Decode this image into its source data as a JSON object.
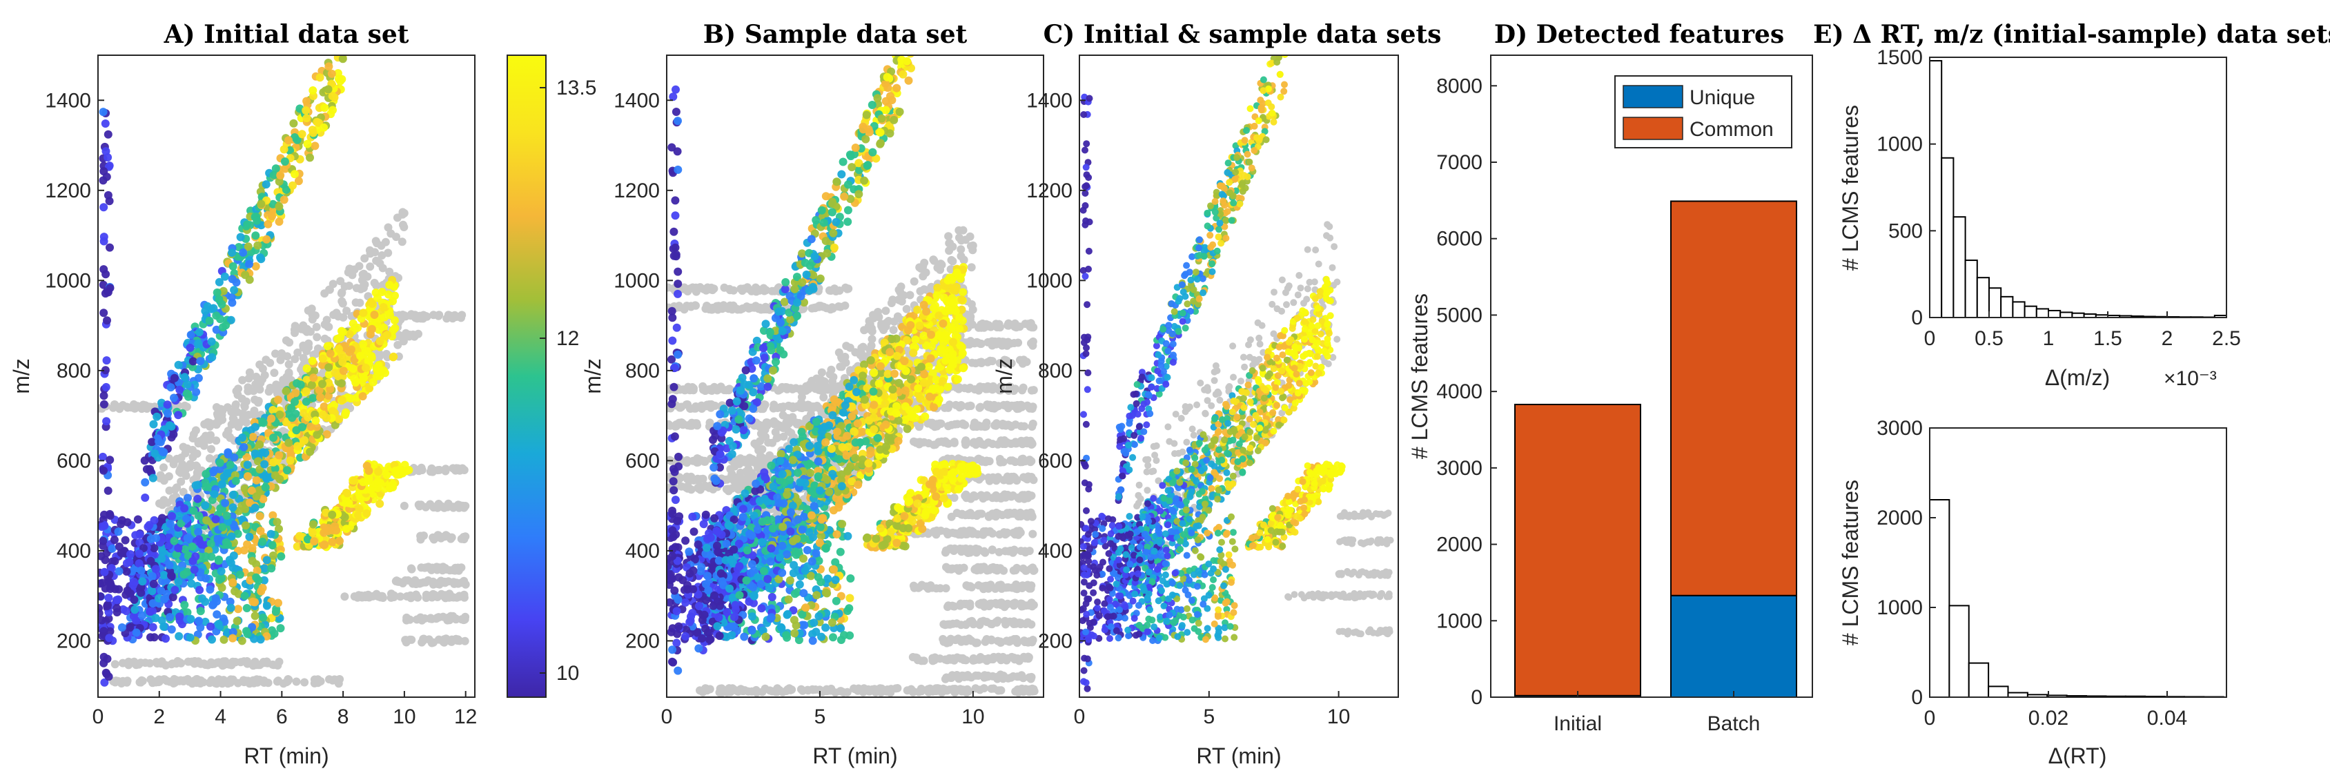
{
  "colors": {
    "gray_points": "#c8c8c8",
    "unique": "#0072BD",
    "common": "#D95319",
    "axis": "#262626",
    "colormap": [
      "#3e26a8",
      "#4743f2",
      "#2f7dfa",
      "#1aa9d8",
      "#2dc38f",
      "#a3bf38",
      "#f5b738",
      "#f9e31f",
      "#f9fb0e"
    ]
  },
  "panels": {
    "a": {
      "title": "A) Initial data set",
      "xlabel": "RT (min)",
      "ylabel": "m/z"
    },
    "b": {
      "title": "B) Sample data set",
      "xlabel": "RT (min)"
    },
    "c": {
      "title": "C) Initial & sample data sets",
      "xlabel": "RT (min)",
      "ylabel": "m/z"
    },
    "d": {
      "title": "D) Detected features"
    },
    "e": {
      "title": "E) Δ RT, m/z (initial-sample) data sets"
    }
  },
  "colorbar": {
    "label": "m/z",
    "ticks": [
      "13.5",
      "12",
      "10"
    ]
  },
  "chart_data": [
    {
      "id": "A",
      "type": "scatter",
      "title": "A) Initial data set",
      "xlabel": "RT (min)",
      "ylabel": "m/z",
      "xlim": [
        0,
        12.3
      ],
      "ylim": [
        75,
        1500
      ],
      "xticks": [
        "0",
        "2",
        "4",
        "6",
        "8",
        "10",
        "12"
      ],
      "yticks": [
        "200",
        "400",
        "600",
        "800",
        "1000",
        "1200",
        "1400"
      ],
      "color_scale": "log m/z (colorbar 10-13.5)"
    },
    {
      "id": "B",
      "type": "scatter",
      "title": "B) Sample data set",
      "xlabel": "RT (min)",
      "xlim": [
        0,
        12.3
      ],
      "ylim": [
        75,
        1500
      ],
      "xticks": [
        "0",
        "5",
        "10"
      ],
      "yticks": [
        "200",
        "400",
        "600",
        "800",
        "1000",
        "1200",
        "1400"
      ]
    },
    {
      "id": "C",
      "type": "scatter",
      "title": "C) Initial & sample data sets",
      "xlabel": "RT (min)",
      "ylabel": "m/z",
      "xlim": [
        0,
        12.3
      ],
      "ylim": [
        75,
        1500
      ],
      "xticks": [
        "0",
        "5",
        "10"
      ],
      "yticks": [
        "200",
        "400",
        "600",
        "800",
        "1000",
        "1200",
        "1400"
      ]
    },
    {
      "id": "D",
      "type": "bar",
      "title": "D) Detected features",
      "ylabel": "# LCMS features",
      "categories": [
        "Initial",
        "Batch"
      ],
      "series": [
        {
          "name": "Unique",
          "values": [
            20,
            1330
          ]
        },
        {
          "name": "Common",
          "values": [
            3810,
            5160
          ]
        }
      ],
      "ylim": [
        0,
        8400
      ],
      "yticks": [
        "0",
        "1000",
        "2000",
        "3000",
        "4000",
        "5000",
        "6000",
        "7000",
        "8000"
      ],
      "legend": "top-right"
    },
    {
      "id": "E1",
      "type": "bar",
      "title": "E) Δ RT, m/z (initial-sample) data sets",
      "xlabel": "Δ(m/z)",
      "ylabel": "# LCMS features",
      "x_multiplier": "×10⁻³",
      "bin_width": 0.1,
      "bin_starts": [
        0.0,
        0.1,
        0.2,
        0.3,
        0.4,
        0.5,
        0.6,
        0.7,
        0.8,
        0.9,
        1.0,
        1.1,
        1.2,
        1.3,
        1.4,
        1.5,
        1.6,
        1.7,
        1.8,
        1.9,
        2.0,
        2.1,
        2.2,
        2.3,
        2.4
      ],
      "values": [
        1480,
        920,
        580,
        330,
        230,
        170,
        120,
        90,
        65,
        50,
        40,
        30,
        25,
        20,
        15,
        12,
        10,
        8,
        6,
        5,
        4,
        3,
        3,
        2,
        12
      ],
      "xlim": [
        0,
        2.5
      ],
      "ylim": [
        0,
        1500
      ],
      "xticks": [
        "0",
        "0.5",
        "1",
        "1.5",
        "2",
        "2.5"
      ],
      "yticks": [
        "0",
        "500",
        "1000",
        "1500"
      ]
    },
    {
      "id": "E2",
      "type": "bar",
      "xlabel": "Δ(RT)",
      "ylabel": "# LCMS features",
      "bin_width": 0.0033,
      "bin_starts": [
        0,
        0.0033,
        0.0066,
        0.0099,
        0.0132,
        0.0165,
        0.0198,
        0.0231,
        0.0264,
        0.0297,
        0.033,
        0.0363,
        0.0396,
        0.0429,
        0.0462
      ],
      "values": [
        2200,
        1020,
        380,
        120,
        50,
        28,
        20,
        15,
        12,
        10,
        10,
        8,
        6,
        5,
        4
      ],
      "xlim": [
        0,
        0.05
      ],
      "ylim": [
        0,
        3000
      ],
      "xticks": [
        "0",
        "0.02",
        "0.04"
      ],
      "yticks": [
        "0",
        "1000",
        "2000",
        "3000"
      ]
    }
  ]
}
